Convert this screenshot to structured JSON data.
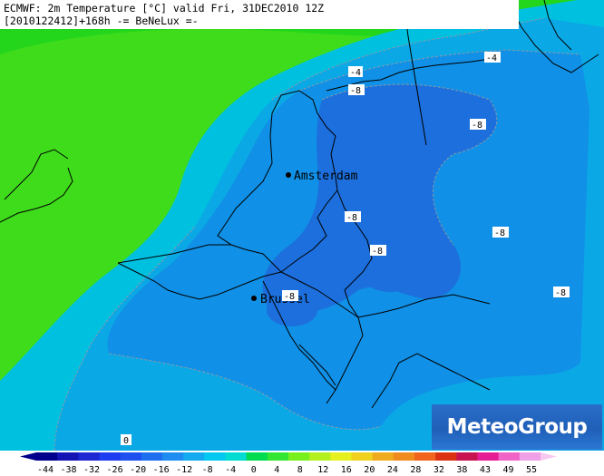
{
  "title": {
    "line1": "ECMWF: 2m Temperature [°C] valid Fri, 31DEC2010 12Z",
    "line2": "[2010122412]+168h -= BeNeLux =-"
  },
  "cities": [
    {
      "name": "Amsterdam"
    },
    {
      "name": "Brussel"
    }
  ],
  "isotherm_labels": [
    "-4",
    "-4",
    "-8",
    "-8",
    "-8",
    "-8",
    "-8",
    "-8",
    "-8",
    "0"
  ],
  "logo": {
    "text": "MeteoGroup"
  },
  "colorbar": {
    "labels": [
      "-44",
      "-38",
      "-32",
      "-26",
      "-20",
      "-16",
      "-12",
      "-8",
      "-4",
      "0",
      "4",
      "8",
      "12",
      "16",
      "20",
      "24",
      "28",
      "32",
      "38",
      "43",
      "49",
      "55"
    ]
  },
  "colors": {
    "land_green": "#1fd317",
    "sea_green": "#55e41c",
    "cyan": "#00c3e1",
    "light_blue": "#0aa9e6",
    "mid_blue": "#0f8ae6",
    "dark_blue": "#1a6fdc"
  }
}
